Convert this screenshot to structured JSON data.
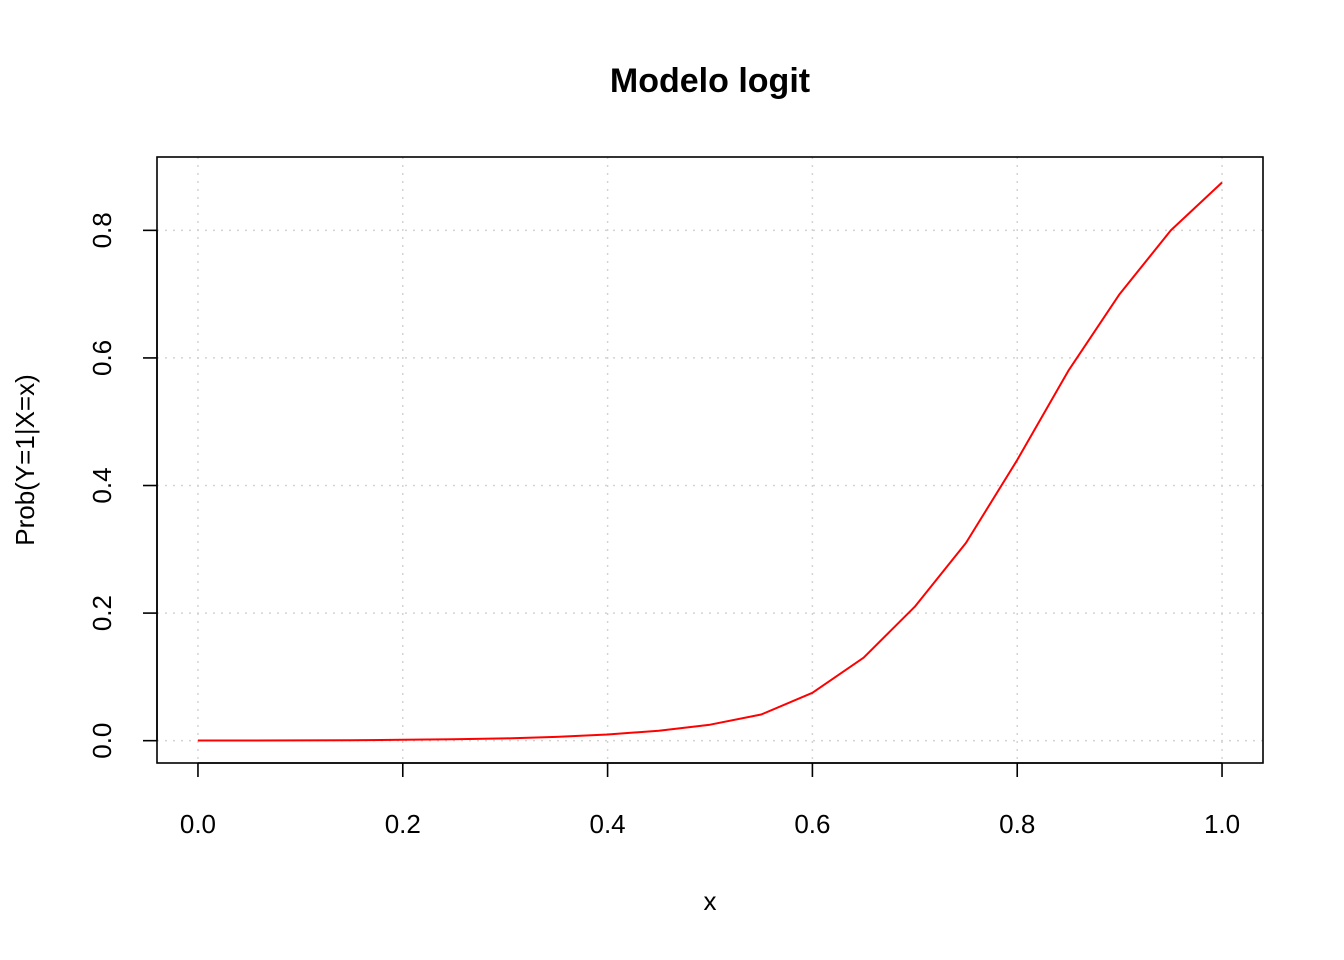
{
  "chart_data": {
    "type": "line",
    "title": "Modelo logit",
    "xlabel": "x",
    "ylabel": "Prob(Y=1|X=x)",
    "xlim": [
      -0.04,
      1.04
    ],
    "ylim": [
      -0.035,
      0.915
    ],
    "x_ticks": [
      0.0,
      0.2,
      0.4,
      0.6,
      0.8,
      1.0
    ],
    "x_tick_labels": [
      "0.0",
      "0.2",
      "0.4",
      "0.6",
      "0.8",
      "1.0"
    ],
    "y_ticks": [
      0.0,
      0.2,
      0.4,
      0.6,
      0.8
    ],
    "y_tick_labels": [
      "0.0",
      "0.2",
      "0.4",
      "0.6",
      "0.8"
    ],
    "grid": true,
    "series": [
      {
        "color": "#ff0000",
        "x": [
          0.0,
          0.05,
          0.1,
          0.15,
          0.2,
          0.25,
          0.3,
          0.35,
          0.4,
          0.45,
          0.5,
          0.55,
          0.6,
          0.65,
          0.7,
          0.75,
          0.8,
          0.85,
          0.9,
          0.95,
          1.0
        ],
        "y": [
          0.0002,
          0.0003,
          0.0005,
          0.0008,
          0.0013,
          0.0022,
          0.0036,
          0.0059,
          0.0096,
          0.0156,
          0.025,
          0.041,
          0.075,
          0.13,
          0.21,
          0.31,
          0.44,
          0.58,
          0.7,
          0.8,
          0.875
        ]
      }
    ]
  }
}
